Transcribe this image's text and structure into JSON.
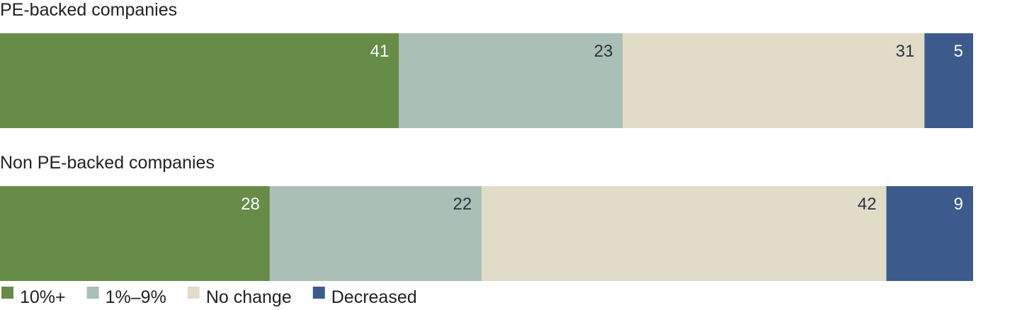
{
  "chart_data": {
    "type": "bar",
    "orientation": "horizontal",
    "stacked": true,
    "categories": [
      "PE-backed companies",
      "Non PE-backed companies"
    ],
    "series": [
      {
        "name": "10%+",
        "values": [
          41,
          28
        ],
        "color": "#668c47",
        "label_color": "#ffffff"
      },
      {
        "name": "1%–9%",
        "values": [
          23,
          22
        ],
        "color": "#aabfb5",
        "label_color": "#2c3340"
      },
      {
        "name": "No change",
        "values": [
          31,
          42
        ],
        "color": "#e1dcc8",
        "label_color": "#2c3340"
      },
      {
        "name": "Decreased",
        "values": [
          5,
          9
        ],
        "color": "#3c5a8c",
        "label_color": "#ffffff"
      }
    ],
    "legend_position": "bottom-left",
    "grid": false
  }
}
